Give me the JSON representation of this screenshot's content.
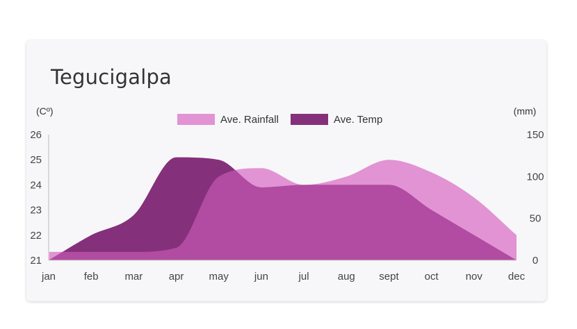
{
  "chart_data": {
    "type": "area",
    "title": "Tegucigalpa",
    "categories": [
      "jan",
      "feb",
      "mar",
      "apr",
      "may",
      "jun",
      "jul",
      "aug",
      "sept",
      "oct",
      "nov",
      "dec"
    ],
    "y_left": {
      "unit": "(Cº)",
      "ylim": [
        21,
        26
      ],
      "ticks": [
        21,
        22,
        23,
        24,
        25,
        26
      ]
    },
    "y_right": {
      "unit": "(mm)",
      "ylim": [
        0,
        150
      ],
      "ticks": [
        0,
        50,
        100,
        150
      ]
    },
    "series": [
      {
        "name": "Ave. Rainfall",
        "axis": "right",
        "color": "#e293d3",
        "values": [
          10,
          10,
          10,
          15,
          100,
          110,
          90,
          100,
          120,
          105,
          75,
          30
        ]
      },
      {
        "name": "Ave. Temp",
        "axis": "left",
        "color": "#85307a",
        "values": [
          21.0,
          22.0,
          22.8,
          25.1,
          25.0,
          23.9,
          24.0,
          24.0,
          24.0,
          23.0,
          22.0,
          21.0
        ]
      }
    ],
    "overlap_color": "#b24ba2",
    "grid": false,
    "legend": "top-center"
  }
}
